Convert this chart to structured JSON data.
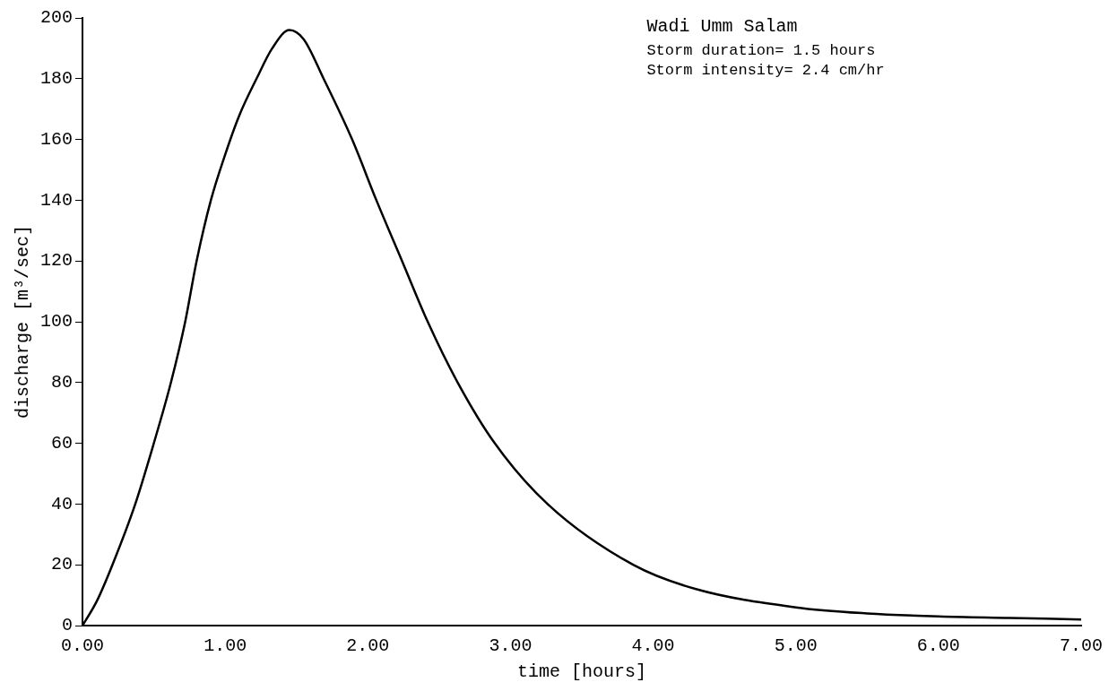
{
  "chart_data": {
    "type": "line",
    "xlabel": "time [hours]",
    "ylabel": "discharge [m³/sec]",
    "annotations": [
      "Wadi Umm Salam",
      "Storm duration= 1.5 hours",
      "Storm intensity= 2.4 cm/hr"
    ],
    "x": [
      0,
      0.1,
      0.21,
      0.37,
      0.5,
      0.62,
      0.72,
      0.8,
      0.9,
      1.0,
      1.1,
      1.22,
      1.33,
      1.45,
      1.55,
      1.69,
      1.89,
      2.06,
      2.24,
      2.42,
      2.63,
      2.89,
      3.26,
      3.86,
      4.3,
      5,
      5.5,
      6,
      6.5,
      7
    ],
    "series": [
      {
        "color": "#000000",
        "values": [
          0,
          8,
          20,
          40,
          60,
          80,
          100,
          120,
          140,
          155,
          168,
          180,
          190,
          196,
          193,
          180,
          160,
          140,
          120,
          100,
          80,
          60,
          40,
          20,
          12,
          6,
          4,
          3,
          2.5,
          2
        ]
      }
    ],
    "xlim": [
      0,
      7
    ],
    "ylim": [
      0,
      200
    ],
    "xticks": [
      {
        "value": 0,
        "label": "0.00"
      },
      {
        "value": 1,
        "label": "1.00"
      },
      {
        "value": 2,
        "label": "2.00"
      },
      {
        "value": 3,
        "label": "3.00"
      },
      {
        "value": 4,
        "label": "4.00"
      },
      {
        "value": 5,
        "label": "5.00"
      },
      {
        "value": 6,
        "label": "6.00"
      },
      {
        "value": 7,
        "label": "7.00"
      }
    ],
    "yticks": [
      0,
      20,
      40,
      60,
      80,
      100,
      120,
      140,
      160,
      180,
      200
    ],
    "grid": false,
    "legend": false,
    "marker": "none",
    "line_style": "solid"
  }
}
